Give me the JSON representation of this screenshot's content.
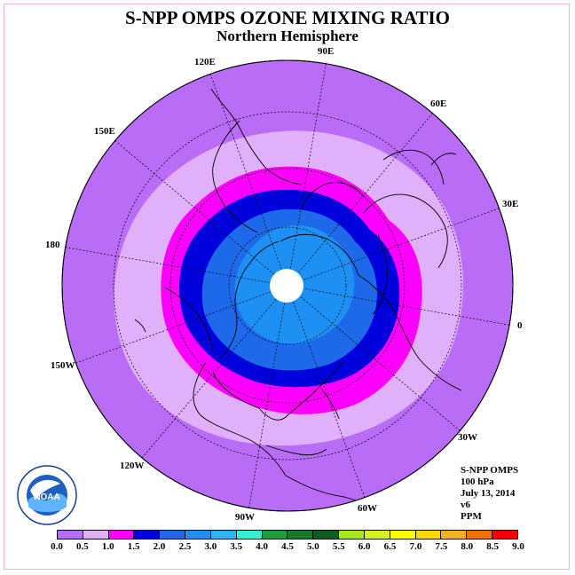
{
  "title": "S-NPP OMPS OZONE MIXING RATIO",
  "subtitle": "Northern Hemisphere",
  "lon_labels": [
    "0",
    "30E",
    "60E",
    "90E",
    "120E",
    "150E",
    "180",
    "150W",
    "120W",
    "90W",
    "60W",
    "30W"
  ],
  "info": {
    "product": "S-NPP OMPS",
    "level": "100 hPa",
    "date": "July 13, 2014",
    "version": "v6",
    "units": "PPM"
  },
  "logo_text": "NOAA",
  "colorbar": {
    "ticks": [
      "0.0",
      "0.5",
      "1.0",
      "1.5",
      "2.0",
      "2.5",
      "3.0",
      "3.5",
      "4.0",
      "4.5",
      "5.0",
      "5.5",
      "6.0",
      "6.5",
      "7.0",
      "7.5",
      "8.0",
      "8.5",
      "9.0"
    ],
    "colors": [
      "#b96cf5",
      "#e0b0fa",
      "#ff00ff",
      "#0000dd",
      "#1e69ea",
      "#1e90f4",
      "#2eb4f4",
      "#34f0d6",
      "#1e9f3c",
      "#117c2a",
      "#0b5e1f",
      "#a8e61d",
      "#d8f020",
      "#ffff00",
      "#ffd700",
      "#f3b21a",
      "#f07300",
      "#f00000",
      "#8b5a2b"
    ]
  },
  "map_colors": {
    "outer": "#b96cf5",
    "band1": "#e0b0fa",
    "band2": "#ff00ff",
    "band3": "#0000dd",
    "band4": "#1e69ea",
    "band5": "#1e90f4",
    "pole": "#ffffff",
    "grid": "#000000"
  }
}
